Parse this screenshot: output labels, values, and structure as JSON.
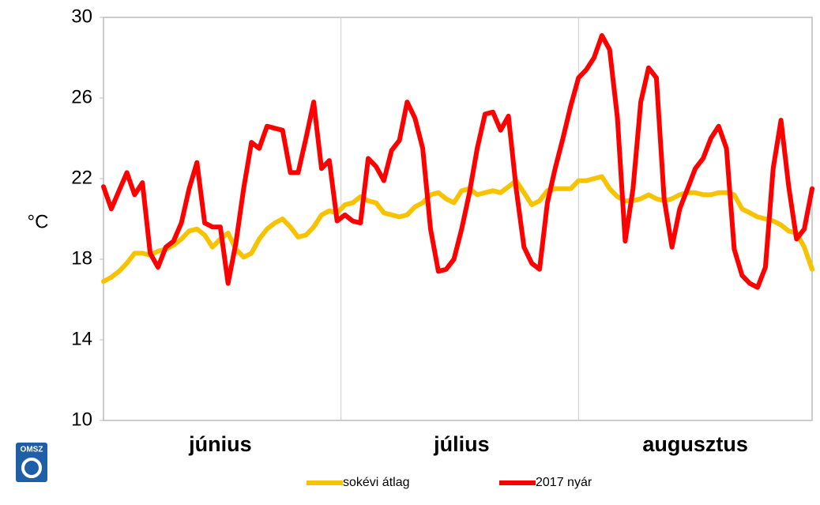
{
  "chart_data": {
    "type": "line",
    "y_label": "°C",
    "logo_text": "OMSZ",
    "categories": [
      null,
      null,
      null,
      null,
      null,
      null,
      null,
      null,
      null,
      null,
      null,
      null,
      null,
      null,
      null,
      "június",
      null,
      null,
      null,
      null,
      null,
      null,
      null,
      null,
      null,
      null,
      null,
      null,
      null,
      null,
      null,
      null,
      null,
      null,
      null,
      null,
      null,
      null,
      null,
      null,
      null,
      null,
      null,
      null,
      null,
      null,
      "július",
      null,
      null,
      null,
      null,
      null,
      null,
      null,
      null,
      null,
      null,
      null,
      null,
      null,
      null,
      null,
      null,
      null,
      null,
      null,
      null,
      null,
      null,
      null,
      null,
      null,
      null,
      null,
      null,
      null,
      "augusztus",
      null,
      null,
      null,
      null,
      null,
      null,
      null,
      null,
      null,
      null,
      null,
      null,
      null,
      null,
      null
    ],
    "series": [
      {
        "name": "sokévi átlag",
        "color": "#f7c200",
        "values": [
          16.9,
          17.1,
          17.4,
          17.8,
          18.3,
          18.3,
          18.2,
          18.4,
          18.5,
          18.7,
          19.0,
          19.4,
          19.5,
          19.2,
          18.6,
          19.0,
          19.3,
          18.5,
          18.1,
          18.3,
          19.0,
          19.5,
          19.8,
          20.0,
          19.6,
          19.1,
          19.2,
          19.6,
          20.2,
          20.4,
          20.3,
          20.7,
          20.8,
          21.1,
          20.9,
          20.8,
          20.3,
          20.2,
          20.1,
          20.2,
          20.6,
          20.8,
          21.2,
          21.3,
          21.0,
          20.8,
          21.4,
          21.5,
          21.2,
          21.3,
          21.4,
          21.3,
          21.6,
          21.9,
          21.3,
          20.7,
          20.9,
          21.4,
          21.5,
          21.5,
          21.5,
          21.9,
          21.9,
          22.0,
          22.1,
          21.5,
          21.1,
          20.9,
          20.9,
          21.0,
          21.2,
          21.0,
          20.9,
          21.0,
          21.2,
          21.3,
          21.3,
          21.2,
          21.2,
          21.3,
          21.3,
          21.2,
          20.5,
          20.3,
          20.1,
          20.0,
          19.9,
          19.7,
          19.4,
          19.3,
          18.6,
          17.5
        ]
      },
      {
        "name": "2017 nyár",
        "color": "#ff0000",
        "values": [
          21.6,
          20.5,
          21.4,
          22.3,
          21.2,
          21.8,
          18.3,
          17.6,
          18.6,
          18.9,
          19.8,
          21.5,
          22.8,
          19.8,
          19.6,
          19.6,
          16.8,
          18.8,
          21.5,
          23.8,
          23.5,
          24.6,
          24.5,
          24.4,
          22.3,
          22.3,
          24.0,
          25.8,
          22.5,
          22.9,
          19.9,
          20.2,
          19.9,
          19.8,
          23.0,
          22.6,
          21.9,
          23.4,
          23.9,
          25.8,
          25.0,
          23.5,
          19.5,
          17.4,
          17.5,
          18.0,
          19.5,
          21.3,
          23.5,
          25.2,
          25.3,
          24.4,
          25.1,
          21.5,
          18.6,
          17.8,
          17.5,
          20.8,
          22.5,
          24.0,
          25.6,
          27.0,
          27.4,
          28.0,
          29.1,
          28.4,
          25.0,
          18.9,
          21.5,
          25.8,
          27.5,
          27.0,
          21.0,
          18.6,
          20.5,
          21.5,
          22.5,
          23.0,
          24.0,
          24.6,
          23.5,
          18.5,
          17.2,
          16.8,
          16.6,
          17.6,
          22.5,
          24.9,
          21.6,
          19.0,
          19.5,
          21.5
        ]
      }
    ],
    "ylim": [
      10,
      30
    ],
    "yticks": [
      10,
      14,
      18,
      22,
      26,
      30
    ],
    "grid": false
  }
}
